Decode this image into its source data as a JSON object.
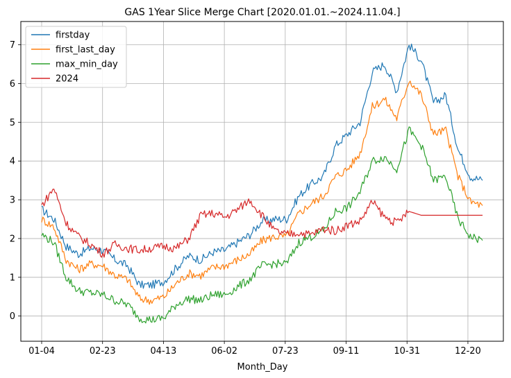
{
  "chart_data": {
    "type": "line",
    "title": "GAS 1Year Slice Merge Chart [2020.01.01.~2024.11.04.]",
    "xlabel": "Month_Day",
    "ylabel": "",
    "x_tick_labels": [
      "01-04",
      "02-23",
      "04-13",
      "06-02",
      "07-23",
      "09-11",
      "10-31",
      "12-20"
    ],
    "y_ticks": [
      0,
      1,
      2,
      3,
      4,
      5,
      6,
      7
    ],
    "ylim": [
      -0.65,
      7.6
    ],
    "grid": true,
    "legend_position": "top-left",
    "colors": {
      "firstday": "#1f77b4",
      "first_last_day": "#ff7f0e",
      "max_min_day": "#2ca02c",
      "2024": "#d62728"
    },
    "x": [
      "01-04",
      "01-14",
      "01-24",
      "02-03",
      "02-13",
      "02-23",
      "03-05",
      "03-15",
      "03-25",
      "04-04",
      "04-13",
      "04-23",
      "05-03",
      "05-13",
      "05-23",
      "06-02",
      "06-12",
      "06-22",
      "07-02",
      "07-12",
      "07-23",
      "08-02",
      "08-12",
      "08-22",
      "09-01",
      "09-11",
      "09-21",
      "10-01",
      "10-11",
      "10-21",
      "10-31",
      "11-10",
      "11-20",
      "11-30",
      "12-10",
      "12-20",
      "12-30"
    ],
    "series": [
      {
        "name": "firstday",
        "values": [
          2.75,
          2.5,
          1.8,
          1.6,
          1.75,
          1.7,
          1.45,
          1.3,
          0.8,
          0.8,
          0.9,
          1.25,
          1.55,
          1.45,
          1.65,
          1.7,
          1.9,
          2.1,
          2.45,
          2.5,
          2.5,
          3.1,
          3.4,
          3.6,
          4.4,
          4.7,
          5.0,
          6.3,
          6.5,
          5.8,
          7.0,
          6.6,
          5.5,
          5.7,
          4.3,
          3.6,
          3.5
        ]
      },
      {
        "name": "first_last_day",
        "values": [
          2.5,
          2.3,
          1.45,
          1.2,
          1.35,
          1.3,
          1.05,
          0.95,
          0.45,
          0.4,
          0.5,
          0.85,
          1.1,
          1.05,
          1.25,
          1.3,
          1.45,
          1.6,
          1.95,
          2.05,
          2.05,
          2.65,
          2.9,
          3.1,
          3.6,
          3.8,
          4.2,
          5.4,
          5.6,
          5.1,
          6.1,
          5.7,
          4.7,
          4.8,
          3.6,
          2.95,
          2.85
        ]
      },
      {
        "name": "max_min_day",
        "values": [
          2.1,
          1.9,
          1.0,
          0.65,
          0.6,
          0.55,
          0.4,
          0.3,
          -0.05,
          -0.1,
          -0.05,
          0.3,
          0.45,
          0.4,
          0.55,
          0.55,
          0.75,
          0.95,
          1.3,
          1.35,
          1.35,
          1.9,
          2.05,
          2.2,
          2.7,
          2.8,
          3.2,
          4.0,
          4.1,
          3.8,
          4.8,
          4.4,
          3.5,
          3.6,
          2.5,
          2.05,
          1.95
        ]
      },
      {
        "name": "2024",
        "values": [
          2.85,
          3.3,
          2.4,
          2.05,
          1.85,
          1.6,
          1.85,
          1.75,
          1.7,
          1.75,
          1.8,
          1.75,
          2.0,
          2.6,
          2.65,
          2.55,
          2.75,
          3.0,
          2.6,
          2.2,
          2.1,
          2.15,
          2.1,
          2.25,
          2.2,
          2.35,
          2.45,
          2.95,
          2.55,
          2.4,
          2.7,
          2.6,
          2.6,
          2.6,
          2.6,
          2.6,
          2.6
        ]
      }
    ]
  }
}
